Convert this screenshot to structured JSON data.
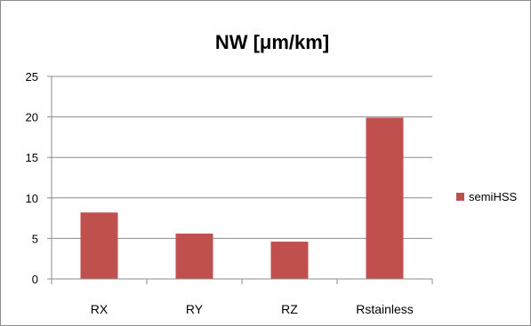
{
  "chart_data": {
    "type": "bar",
    "title": "NW [μm/km]",
    "categories": [
      "RX",
      "RY",
      "RZ",
      "Rstainless"
    ],
    "series": [
      {
        "name": "semiHSS",
        "values": [
          8.2,
          5.6,
          4.6,
          19.9
        ],
        "color": "#c0504d"
      }
    ],
    "ylim": [
      0,
      25
    ],
    "yticks": [
      0,
      5,
      10,
      15,
      20,
      25
    ],
    "grid": true,
    "legend_position": "right"
  }
}
